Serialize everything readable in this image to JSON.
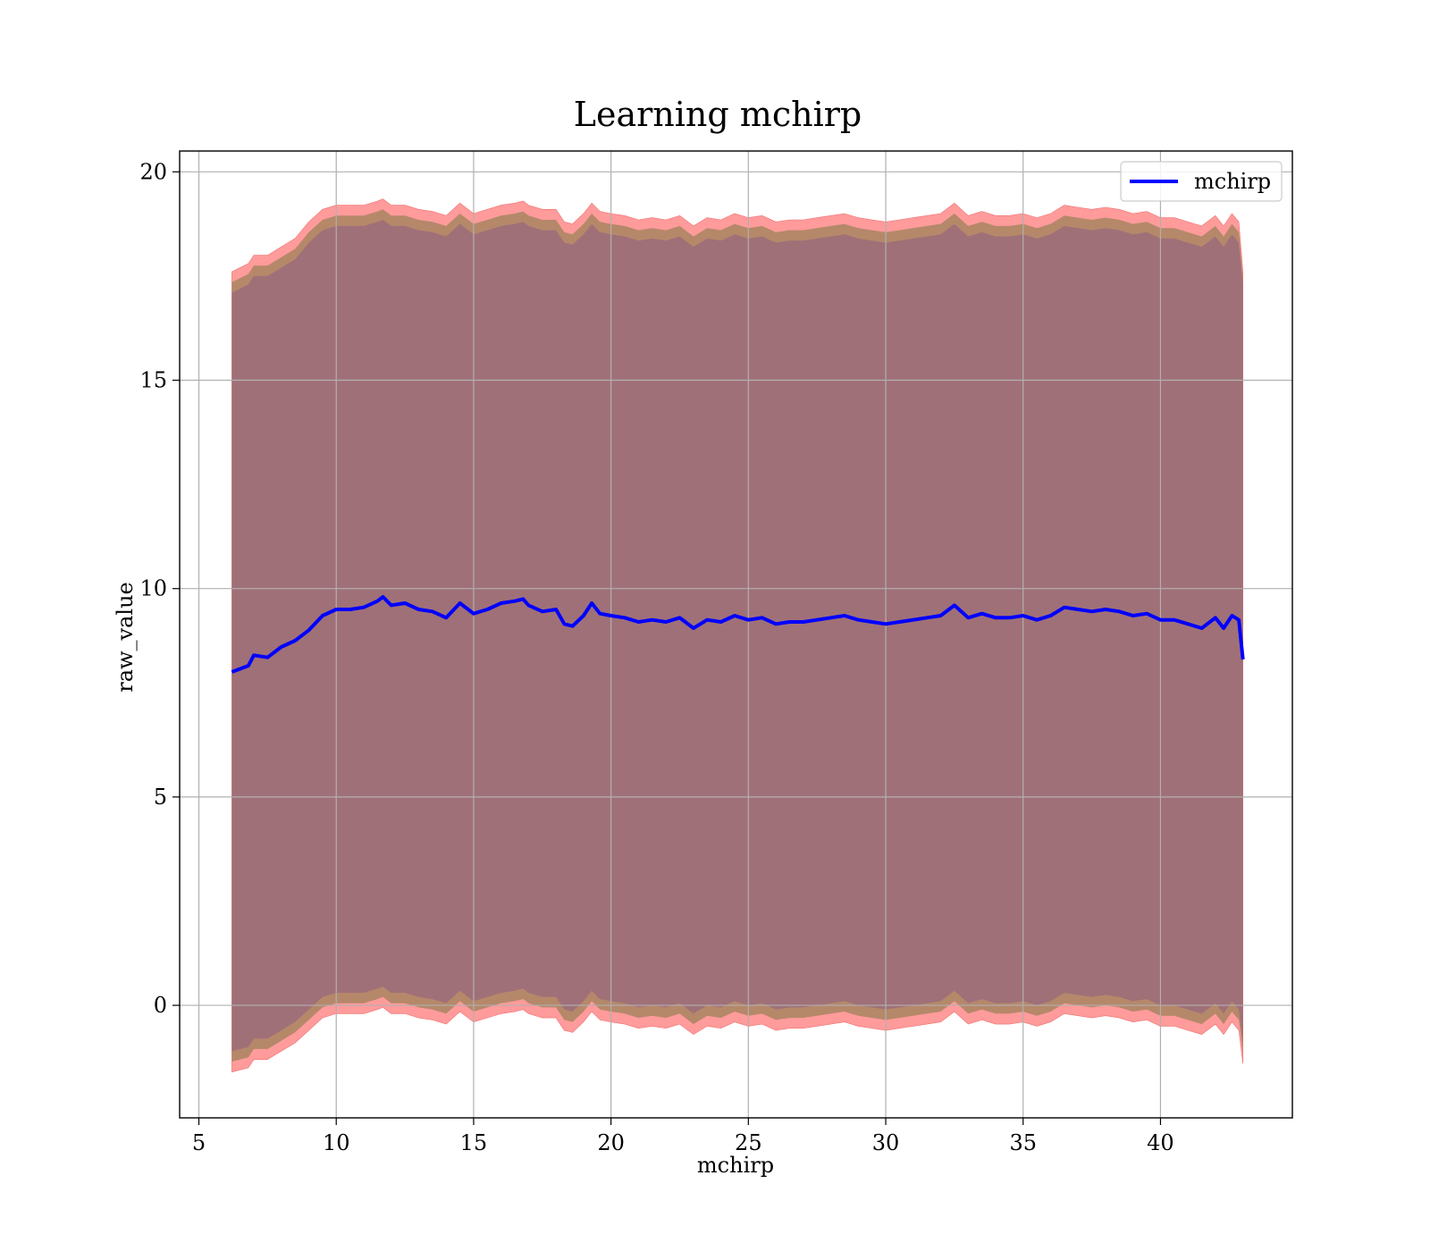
{
  "chart_data": {
    "type": "line",
    "title": "Learning mchirp",
    "xlabel": "mchirp",
    "ylabel": "raw_value",
    "xlim": [
      4.3,
      44.8
    ],
    "ylim": [
      -2.7,
      20.5
    ],
    "grid": true,
    "legend_position": "top-right",
    "x_ticks": [
      5,
      10,
      15,
      20,
      25,
      30,
      35,
      40
    ],
    "y_ticks": [
      0,
      5,
      10,
      15,
      20
    ],
    "colors": {
      "line": "#0000ff",
      "band_outer": "#ff9b9b",
      "band_middle": "#b5886a",
      "band_inner": "#a07078",
      "grid": "#b0b0b0",
      "axes": "#000000"
    },
    "series": [
      {
        "name": "mchirp",
        "x": [
          6.2,
          6.8,
          7.0,
          7.5,
          8.0,
          8.5,
          9.0,
          9.5,
          10.0,
          10.5,
          11.0,
          11.5,
          11.7,
          12.0,
          12.5,
          13.0,
          13.5,
          14.0,
          14.5,
          15.0,
          15.5,
          16.0,
          16.5,
          16.8,
          17.0,
          17.5,
          18.0,
          18.3,
          18.6,
          19.0,
          19.3,
          19.6,
          20.0,
          20.5,
          21.0,
          21.5,
          22.0,
          22.5,
          23.0,
          23.5,
          24.0,
          24.5,
          25.0,
          25.5,
          26.0,
          26.5,
          27.0,
          27.5,
          28.0,
          28.5,
          29.0,
          29.5,
          30.0,
          30.5,
          31.0,
          31.5,
          32.0,
          32.5,
          33.0,
          33.5,
          34.0,
          34.5,
          35.0,
          35.5,
          36.0,
          36.5,
          37.0,
          37.5,
          38.0,
          38.5,
          39.0,
          39.5,
          40.0,
          40.5,
          41.0,
          41.5,
          42.0,
          42.3,
          42.6,
          42.85,
          43.0
        ],
        "mean": [
          8.0,
          8.15,
          8.4,
          8.35,
          8.6,
          8.75,
          9.0,
          9.35,
          9.5,
          9.5,
          9.55,
          9.7,
          9.8,
          9.6,
          9.65,
          9.5,
          9.45,
          9.3,
          9.65,
          9.4,
          9.5,
          9.65,
          9.7,
          9.75,
          9.6,
          9.45,
          9.5,
          9.15,
          9.1,
          9.35,
          9.65,
          9.4,
          9.35,
          9.3,
          9.2,
          9.25,
          9.2,
          9.3,
          9.05,
          9.25,
          9.2,
          9.35,
          9.25,
          9.3,
          9.15,
          9.2,
          9.2,
          9.25,
          9.3,
          9.35,
          9.25,
          9.2,
          9.15,
          9.2,
          9.25,
          9.3,
          9.35,
          9.6,
          9.3,
          9.4,
          9.3,
          9.3,
          9.35,
          9.25,
          9.35,
          9.55,
          9.5,
          9.45,
          9.5,
          9.45,
          9.35,
          9.4,
          9.25,
          9.25,
          9.15,
          9.05,
          9.3,
          9.05,
          9.35,
          9.25,
          8.3
        ],
        "band_inner_upper": [
          17.1,
          17.3,
          17.5,
          17.5,
          17.7,
          17.9,
          18.3,
          18.6,
          18.7,
          18.7,
          18.7,
          18.8,
          18.85,
          18.7,
          18.7,
          18.6,
          18.55,
          18.45,
          18.75,
          18.5,
          18.6,
          18.7,
          18.75,
          18.8,
          18.7,
          18.6,
          18.6,
          18.3,
          18.25,
          18.5,
          18.75,
          18.55,
          18.5,
          18.45,
          18.35,
          18.4,
          18.35,
          18.45,
          18.2,
          18.4,
          18.35,
          18.5,
          18.4,
          18.45,
          18.3,
          18.35,
          18.35,
          18.4,
          18.45,
          18.5,
          18.4,
          18.35,
          18.3,
          18.35,
          18.4,
          18.45,
          18.5,
          18.75,
          18.45,
          18.55,
          18.45,
          18.45,
          18.5,
          18.4,
          18.5,
          18.7,
          18.65,
          18.6,
          18.65,
          18.6,
          18.5,
          18.55,
          18.4,
          18.4,
          18.3,
          18.2,
          18.45,
          18.2,
          18.5,
          18.3,
          17.3
        ],
        "band_inner_lower": [
          -1.1,
          -1.0,
          -0.8,
          -0.8,
          -0.6,
          -0.4,
          -0.1,
          0.2,
          0.3,
          0.3,
          0.3,
          0.4,
          0.45,
          0.3,
          0.3,
          0.2,
          0.15,
          0.05,
          0.35,
          0.1,
          0.2,
          0.3,
          0.35,
          0.4,
          0.3,
          0.2,
          0.2,
          -0.1,
          -0.15,
          0.1,
          0.35,
          0.15,
          0.1,
          0.05,
          -0.05,
          0.0,
          -0.05,
          0.05,
          -0.2,
          0.0,
          -0.05,
          0.1,
          0.0,
          0.05,
          -0.1,
          -0.05,
          -0.05,
          0.0,
          0.05,
          0.1,
          0.0,
          -0.05,
          -0.1,
          -0.05,
          0.0,
          0.05,
          0.1,
          0.35,
          0.05,
          0.15,
          0.05,
          0.05,
          0.1,
          0.0,
          0.1,
          0.3,
          0.25,
          0.2,
          0.25,
          0.2,
          0.1,
          0.15,
          0.0,
          0.0,
          -0.1,
          -0.2,
          0.05,
          -0.2,
          0.1,
          -0.1,
          -0.9
        ],
        "band_outer_upper": [
          17.6,
          17.8,
          18.0,
          18.0,
          18.2,
          18.4,
          18.8,
          19.1,
          19.2,
          19.2,
          19.2,
          19.3,
          19.35,
          19.2,
          19.2,
          19.1,
          19.05,
          18.95,
          19.25,
          19.0,
          19.1,
          19.2,
          19.25,
          19.3,
          19.2,
          19.1,
          19.1,
          18.8,
          18.75,
          19.0,
          19.25,
          19.05,
          19.0,
          18.95,
          18.85,
          18.9,
          18.85,
          18.95,
          18.7,
          18.9,
          18.85,
          19.0,
          18.9,
          18.95,
          18.8,
          18.85,
          18.85,
          18.9,
          18.95,
          19.0,
          18.9,
          18.85,
          18.8,
          18.85,
          18.9,
          18.95,
          19.0,
          19.25,
          18.95,
          19.05,
          18.95,
          18.95,
          19.0,
          18.9,
          19.0,
          19.2,
          19.15,
          19.1,
          19.15,
          19.1,
          19.0,
          19.05,
          18.9,
          18.9,
          18.8,
          18.7,
          18.95,
          18.7,
          19.0,
          18.8,
          17.6
        ],
        "band_outer_lower": [
          -1.6,
          -1.5,
          -1.3,
          -1.3,
          -1.1,
          -0.9,
          -0.6,
          -0.3,
          -0.2,
          -0.2,
          -0.2,
          -0.1,
          -0.05,
          -0.2,
          -0.2,
          -0.3,
          -0.35,
          -0.45,
          -0.15,
          -0.4,
          -0.3,
          -0.2,
          -0.15,
          -0.1,
          -0.2,
          -0.3,
          -0.3,
          -0.6,
          -0.65,
          -0.4,
          -0.15,
          -0.35,
          -0.4,
          -0.45,
          -0.55,
          -0.5,
          -0.55,
          -0.45,
          -0.7,
          -0.5,
          -0.55,
          -0.4,
          -0.5,
          -0.45,
          -0.6,
          -0.55,
          -0.55,
          -0.5,
          -0.45,
          -0.4,
          -0.5,
          -0.55,
          -0.6,
          -0.55,
          -0.5,
          -0.45,
          -0.4,
          -0.15,
          -0.45,
          -0.35,
          -0.45,
          -0.45,
          -0.4,
          -0.5,
          -0.4,
          -0.2,
          -0.25,
          -0.3,
          -0.25,
          -0.3,
          -0.4,
          -0.35,
          -0.5,
          -0.5,
          -0.6,
          -0.7,
          -0.45,
          -0.7,
          -0.4,
          -0.6,
          -1.4
        ]
      }
    ]
  }
}
